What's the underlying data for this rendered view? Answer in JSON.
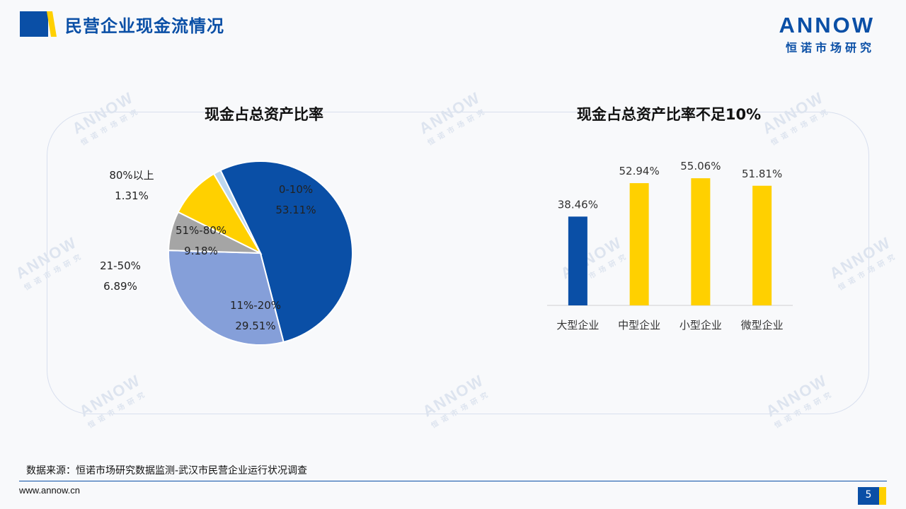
{
  "header": {
    "title": "民营企业现金流情况",
    "logo_word": "ANNOW",
    "logo_sub": "恒诺市场研究"
  },
  "watermark": {
    "word": "ANNOW",
    "sub": "恒诺市场研究"
  },
  "chart_data": [
    {
      "type": "pie",
      "title": "现金占总资产比率",
      "slices": [
        {
          "label": "0-10%",
          "value": 53.11,
          "display": "53.11%",
          "color": "#0a4fa6"
        },
        {
          "label": "11%-20%",
          "value": 29.51,
          "display": "29.51%",
          "color": "#859fd9"
        },
        {
          "label": "21-50%",
          "value": 6.89,
          "display": "6.89%",
          "color": "#a5a5a5"
        },
        {
          "label": "51%-80%",
          "value": 9.18,
          "display": "9.18%",
          "color": "#ffd000"
        },
        {
          "label": "80%以上",
          "value": 1.31,
          "display": "1.31%",
          "color": "#bdd7ee"
        }
      ]
    },
    {
      "type": "bar",
      "title": "现金占总资产比率不足10%",
      "categories": [
        "大型企业",
        "中型企业",
        "小型企业",
        "微型企业"
      ],
      "values": [
        38.46,
        52.94,
        55.06,
        51.81
      ],
      "value_labels": [
        "38.46%",
        "52.94%",
        "55.06%",
        "51.81%"
      ],
      "colors": [
        "#0a4fa6",
        "#ffd000",
        "#ffd000",
        "#ffd000"
      ],
      "ylim": [
        0,
        60
      ]
    }
  ],
  "footer": {
    "source": "数据来源：恒诺市场研究数据监测-武汉市民营企业运行状况调查",
    "url": "www.annow.cn",
    "page_number": "5"
  }
}
